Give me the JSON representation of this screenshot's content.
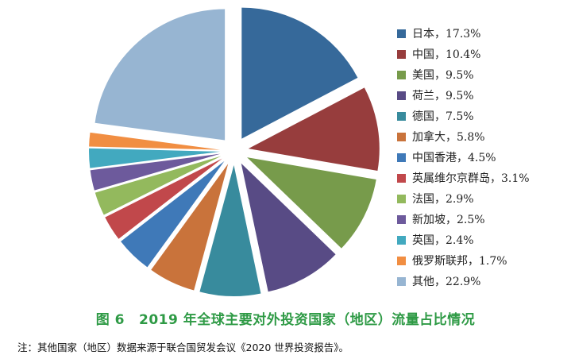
{
  "chart_data": {
    "type": "pie",
    "title": "2019 年全球主要对外投资国家（地区）流量占比情况",
    "legend_position": "right",
    "slices": [
      {
        "label": "日本",
        "value": 17.3,
        "legend": "日本，17.3%",
        "color": "#36699a"
      },
      {
        "label": "中国",
        "value": 10.4,
        "legend": "中国，10.4%",
        "color": "#973d3d"
      },
      {
        "label": "美国",
        "value": 9.5,
        "legend": "美国，9.5%",
        "color": "#779b4b"
      },
      {
        "label": "荷兰",
        "value": 9.5,
        "legend": "荷兰，9.5%",
        "color": "#584b85"
      },
      {
        "label": "德国",
        "value": 7.5,
        "legend": "德国，7.5%",
        "color": "#388b9d"
      },
      {
        "label": "加拿大",
        "value": 5.8,
        "legend": "加拿大，5.8%",
        "color": "#c9733b"
      },
      {
        "label": "中国香港",
        "value": 4.5,
        "legend": "中国香港，4.5%",
        "color": "#3f79b8"
      },
      {
        "label": "英属维尔京群岛",
        "value": 3.1,
        "legend": "英属维尔京群岛，3.1%",
        "color": "#c1484b"
      },
      {
        "label": "法国",
        "value": 2.9,
        "legend": "法国，2.9%",
        "color": "#93b95d"
      },
      {
        "label": "新加坡",
        "value": 2.5,
        "legend": "新加坡，2.5%",
        "color": "#6d5a9c"
      },
      {
        "label": "英国",
        "value": 2.4,
        "legend": "英国，2.4%",
        "color": "#42a9bf"
      },
      {
        "label": "俄罗斯联邦",
        "value": 1.7,
        "legend": "俄罗斯联邦，1.7%",
        "color": "#f18e42"
      },
      {
        "label": "其他",
        "value": 22.9,
        "legend": "其他，22.9%",
        "color": "#97b5d2"
      }
    ]
  },
  "caption": {
    "figure_number": "图 6",
    "title": "2019 年全球主要对外投资国家（地区）流量占比情况"
  },
  "note": "注：其他国家（地区）数据来源于联合国贸发会议《2020 世界投资报告》。"
}
